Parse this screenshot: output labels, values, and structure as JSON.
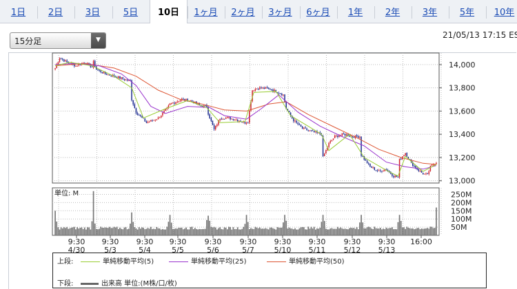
{
  "tabs": [
    {
      "label": "1日",
      "active": false
    },
    {
      "label": "2日",
      "active": false
    },
    {
      "label": "3日",
      "active": false
    },
    {
      "label": "5日",
      "active": false
    },
    {
      "label": "10日",
      "active": true
    },
    {
      "label": "1ヶ月",
      "active": false
    },
    {
      "label": "2ヶ月",
      "active": false
    },
    {
      "label": "3ヶ月",
      "active": false
    },
    {
      "label": "6ヶ月",
      "active": false
    },
    {
      "label": "1年",
      "active": false
    },
    {
      "label": "2年",
      "active": false
    },
    {
      "label": "3年",
      "active": false
    },
    {
      "label": "5年",
      "active": false
    },
    {
      "label": "10年",
      "active": false
    }
  ],
  "interval_select": {
    "value": "15分足"
  },
  "timestamp": "21/05/13 17:15 ES",
  "legend": {
    "upper_label": "上段:",
    "lower_label": "下段:",
    "items": [
      {
        "label": "単純移動平均(5)",
        "color": "#99cc33"
      },
      {
        "label": "単純移動平均(25)",
        "color": "#9933cc"
      },
      {
        "label": "単純移動平均(50)",
        "color": "#dd5533"
      }
    ],
    "volume_label": "出来高 単位:(M株/口/枚)"
  },
  "chart_data": [
    {
      "type": "candlestick",
      "y_ticks": [
        "14,000",
        "13,800",
        "13,600",
        "13,400",
        "13,200",
        "13,000"
      ],
      "y_tick_values": [
        14000,
        13800,
        13600,
        13400,
        13200,
        13000
      ],
      "ylim": [
        12980,
        14100
      ],
      "x_labels": [
        {
          "time": "9:30",
          "date": "4/30"
        },
        {
          "time": "9:30",
          "date": "5/3"
        },
        {
          "time": "9:30",
          "date": "5/4"
        },
        {
          "time": "9:30",
          "date": "5/5"
        },
        {
          "time": "9:30",
          "date": "5/6"
        },
        {
          "time": "9:30",
          "date": "5/7"
        },
        {
          "time": "9:30",
          "date": "5/10"
        },
        {
          "time": "9:30",
          "date": "5/11"
        },
        {
          "time": "9:30",
          "date": "5/12"
        },
        {
          "time": "9:30",
          "date": "5/13"
        },
        {
          "time": "16:00",
          "date": ""
        }
      ],
      "bars_per_day": 26,
      "close_path": [
        [
          0,
          13970
        ],
        [
          3,
          14060
        ],
        [
          8,
          14020
        ],
        [
          14,
          13990
        ],
        [
          20,
          14020
        ],
        [
          25,
          13980
        ],
        [
          26,
          14020
        ],
        [
          28,
          13960
        ],
        [
          34,
          13920
        ],
        [
          40,
          13900
        ],
        [
          48,
          13870
        ],
        [
          51,
          13860
        ],
        [
          52,
          13700
        ],
        [
          55,
          13590
        ],
        [
          62,
          13500
        ],
        [
          70,
          13540
        ],
        [
          76,
          13620
        ],
        [
          78,
          13660
        ],
        [
          86,
          13700
        ],
        [
          92,
          13690
        ],
        [
          98,
          13650
        ],
        [
          103,
          13640
        ],
        [
          104,
          13580
        ],
        [
          108,
          13440
        ],
        [
          112,
          13540
        ],
        [
          118,
          13540
        ],
        [
          125,
          13520
        ],
        [
          129,
          13500
        ],
        [
          131,
          13510
        ],
        [
          134,
          13780
        ],
        [
          138,
          13800
        ],
        [
          146,
          13790
        ],
        [
          152,
          13760
        ],
        [
          155,
          13740
        ],
        [
          157,
          13620
        ],
        [
          162,
          13520
        ],
        [
          168,
          13450
        ],
        [
          175,
          13420
        ],
        [
          181,
          13400
        ],
        [
          182,
          13200
        ],
        [
          186,
          13320
        ],
        [
          190,
          13380
        ],
        [
          196,
          13400
        ],
        [
          203,
          13380
        ],
        [
          207,
          13380
        ],
        [
          208,
          13220
        ],
        [
          214,
          13120
        ],
        [
          220,
          13080
        ],
        [
          225,
          13100
        ],
        [
          230,
          13040
        ],
        [
          233,
          13030
        ],
        [
          234,
          13180
        ],
        [
          238,
          13240
        ],
        [
          242,
          13150
        ],
        [
          246,
          13100
        ],
        [
          250,
          13060
        ],
        [
          253,
          13050
        ],
        [
          255,
          13120
        ],
        [
          259,
          13160
        ]
      ],
      "sma_5": [
        [
          0,
          13990
        ],
        [
          10,
          14020
        ],
        [
          25,
          13990
        ],
        [
          40,
          13900
        ],
        [
          52,
          13800
        ],
        [
          60,
          13540
        ],
        [
          75,
          13620
        ],
        [
          90,
          13690
        ],
        [
          103,
          13630
        ],
        [
          112,
          13500
        ],
        [
          129,
          13510
        ],
        [
          135,
          13760
        ],
        [
          150,
          13770
        ],
        [
          160,
          13560
        ],
        [
          181,
          13400
        ],
        [
          186,
          13260
        ],
        [
          200,
          13400
        ],
        [
          210,
          13200
        ],
        [
          225,
          13090
        ],
        [
          233,
          13040
        ],
        [
          238,
          13210
        ],
        [
          250,
          13080
        ],
        [
          259,
          13140
        ]
      ],
      "sma_25": [
        [
          0,
          14000
        ],
        [
          15,
          14010
        ],
        [
          30,
          13990
        ],
        [
          45,
          13920
        ],
        [
          55,
          13820
        ],
        [
          65,
          13640
        ],
        [
          75,
          13580
        ],
        [
          90,
          13640
        ],
        [
          105,
          13630
        ],
        [
          115,
          13560
        ],
        [
          130,
          13530
        ],
        [
          140,
          13620
        ],
        [
          152,
          13740
        ],
        [
          165,
          13590
        ],
        [
          180,
          13470
        ],
        [
          195,
          13380
        ],
        [
          210,
          13300
        ],
        [
          225,
          13160
        ],
        [
          238,
          13120
        ],
        [
          250,
          13100
        ],
        [
          259,
          13130
        ]
      ],
      "sma_50": [
        [
          0,
          13990
        ],
        [
          20,
          14010
        ],
        [
          40,
          13970
        ],
        [
          55,
          13900
        ],
        [
          70,
          13780
        ],
        [
          85,
          13700
        ],
        [
          100,
          13660
        ],
        [
          115,
          13610
        ],
        [
          130,
          13600
        ],
        [
          145,
          13660
        ],
        [
          157,
          13680
        ],
        [
          172,
          13570
        ],
        [
          190,
          13460
        ],
        [
          205,
          13370
        ],
        [
          220,
          13270
        ],
        [
          235,
          13200
        ],
        [
          250,
          13150
        ],
        [
          259,
          13140
        ]
      ]
    },
    {
      "type": "bar",
      "unit_label": "単位: M",
      "y_ticks": [
        "250M",
        "200M",
        "150M",
        "100M",
        "50M"
      ],
      "y_tick_values": [
        250,
        200,
        150,
        100,
        50
      ],
      "ylim": [
        0,
        290
      ],
      "daily_open_spike": [
        150,
        270,
        140,
        125,
        120,
        125,
        125,
        125,
        125,
        125
      ],
      "close_spike": 170,
      "typical_intraday": [
        35,
        65
      ]
    }
  ]
}
